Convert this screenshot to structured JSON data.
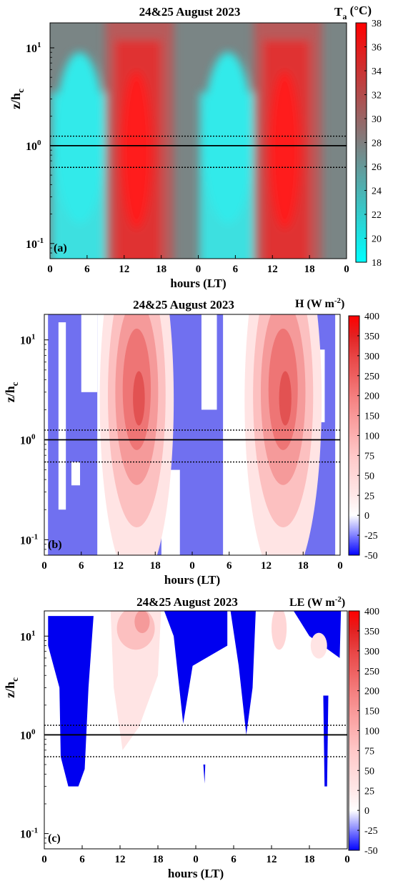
{
  "chart_data": [
    {
      "type": "heatmap",
      "panel_label": "(a)",
      "title": "24&25 August 2023",
      "xlabel": "hours (LT)",
      "ylabel": "z/hc",
      "ylabel_main": "z/h",
      "ylabel_sub": "c",
      "y_scale": "log",
      "ylim": [
        0.07,
        18
      ],
      "xlim": [
        0,
        48
      ],
      "x_ticks": [
        0,
        6,
        12,
        18,
        24,
        30,
        36,
        42,
        48
      ],
      "x_tick_labels": [
        "0",
        "6",
        "12",
        "18",
        "0",
        "6",
        "12",
        "18",
        "0"
      ],
      "y_ticks": [
        0.1,
        1,
        10
      ],
      "y_tick_labels": [
        "10",
        "10",
        "10"
      ],
      "y_tick_exponents": [
        "-1",
        "0",
        "1"
      ],
      "reference_lines": [
        {
          "value": 1.0,
          "style": "solid"
        },
        {
          "value": 1.25,
          "style": "dotted"
        },
        {
          "value": 0.6,
          "style": "dotted"
        }
      ],
      "colorbar": {
        "label": "Ta (°C)",
        "label_main": "T",
        "label_sub": "a",
        "label_units": " (°C)",
        "min": 18,
        "max": 38,
        "ticks": [
          18,
          20,
          22,
          24,
          26,
          28,
          30,
          32,
          34,
          36,
          38
        ],
        "tick_labels": [
          "18",
          "20",
          "22",
          "24",
          "26",
          "28",
          "30",
          "32",
          "34",
          "36",
          "38"
        ],
        "colors": [
          "#00ffff",
          "#7f7f7f",
          "#ff0000"
        ]
      },
      "field_description": "cool (~19-22) before dawn and around 00-08 LT, hot (~36-38) at 12-17 LT in the canopy layer, both days"
    },
    {
      "type": "heatmap",
      "panel_label": "(b)",
      "title": "24&25 August 2023",
      "xlabel": "hours (LT)",
      "ylabel": "z/hc",
      "ylabel_main": "z/h",
      "ylabel_sub": "c",
      "y_scale": "log",
      "ylim": [
        0.07,
        18
      ],
      "xlim": [
        0,
        48
      ],
      "x_ticks": [
        0,
        6,
        12,
        18,
        24,
        30,
        36,
        42,
        48
      ],
      "x_tick_labels": [
        "0",
        "6",
        "12",
        "18",
        "0",
        "6",
        "12",
        "18",
        "0"
      ],
      "y_ticks": [
        0.1,
        1,
        10
      ],
      "y_tick_labels": [
        "10",
        "10",
        "10"
      ],
      "y_tick_exponents": [
        "-1",
        "0",
        "1"
      ],
      "reference_lines": [
        {
          "value": 1.0,
          "style": "solid"
        },
        {
          "value": 1.25,
          "style": "dotted"
        },
        {
          "value": 0.6,
          "style": "dotted"
        }
      ],
      "colorbar": {
        "label": "H (W m-2)",
        "label_main": "H (W m",
        "label_sup": "-2",
        "label_close": ")",
        "levels": [
          -50,
          -25,
          0,
          25,
          50,
          75,
          100,
          150,
          200,
          250,
          300,
          350,
          400
        ],
        "ticks": [
          -50,
          -25,
          0,
          25,
          50,
          75,
          100,
          150,
          200,
          250,
          300,
          350,
          400
        ],
        "tick_labels": [
          "-50",
          "-25",
          "0",
          "25",
          "50",
          "75",
          "100",
          "150",
          "200",
          "250",
          "300",
          "350",
          "400"
        ],
        "colors": [
          "#0000ff",
          "#ffffff",
          "#ff0000"
        ]
      },
      "field_description": "negative (~-25) at night, positive up to ~300 W m-2 around 12-16 LT, peak near z/hc 2-3"
    },
    {
      "type": "heatmap",
      "panel_label": "(c)",
      "title": "24&25 August 2023",
      "xlabel": "hours (LT)",
      "ylabel": "z/hc",
      "ylabel_main": "z/h",
      "ylabel_sub": "c",
      "y_scale": "log",
      "ylim": [
        0.07,
        18
      ],
      "xlim": [
        0,
        48
      ],
      "x_ticks": [
        0,
        6,
        12,
        18,
        24,
        30,
        36,
        42,
        48
      ],
      "x_tick_labels": [
        "0",
        "6",
        "12",
        "18",
        "0",
        "6",
        "12",
        "18",
        "0"
      ],
      "y_ticks": [
        0.1,
        1,
        10
      ],
      "y_tick_labels": [
        "10",
        "10",
        "10"
      ],
      "y_tick_exponents": [
        "-1",
        "0",
        "1"
      ],
      "reference_lines": [
        {
          "value": 1.0,
          "style": "solid"
        },
        {
          "value": 1.25,
          "style": "dotted"
        },
        {
          "value": 0.6,
          "style": "dotted"
        }
      ],
      "colorbar": {
        "label": "LE (W m-2)",
        "label_main": "LE (W m",
        "label_sup": "-2",
        "label_close": ")",
        "levels": [
          -50,
          -25,
          0,
          25,
          50,
          75,
          100,
          150,
          200,
          250,
          300,
          350,
          400
        ],
        "ticks": [
          -50,
          -25,
          0,
          25,
          50,
          75,
          100,
          150,
          200,
          250,
          300,
          350,
          400
        ],
        "tick_labels": [
          "-50",
          "-25",
          "0",
          "25",
          "50",
          "75",
          "100",
          "150",
          "200",
          "250",
          "300",
          "350",
          "400"
        ],
        "colors": [
          "#0000ff",
          "#ffffff",
          "#ff0000"
        ]
      },
      "field_description": "mostly near zero; negative patches in early morning and upper levels, weak positive (~50-100) above canopy at midday"
    }
  ]
}
